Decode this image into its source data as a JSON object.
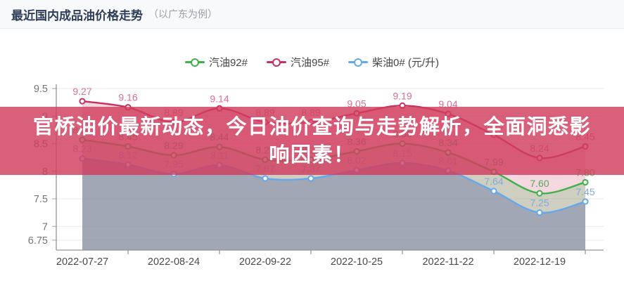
{
  "header": {
    "title": "最近国内成品油价格走势",
    "subtitle": "（以广东为例）"
  },
  "legend": {
    "position": "top",
    "items": [
      {
        "label": "汽油92#"
      },
      {
        "label": "汽油95#"
      },
      {
        "label": "柴油0# (元/升)"
      }
    ]
  },
  "banner": {
    "line1": "官桥油价最新动态，今日油价查询与走势解析，全面洞悉影",
    "line2": "响因素！"
  },
  "chart_data": {
    "type": "line",
    "title": "最近国内成品油价格走势（以广东为例）",
    "unit": "元/升",
    "grid": true,
    "legend_position": "top",
    "x_tick_labels": [
      "2022-07-27",
      "2022-08-24",
      "2022-09-22",
      "2022-10-25",
      "2022-11-22",
      "2022-12-19"
    ],
    "points_per_x_label": 2,
    "y_ticks": [
      9.5,
      9,
      8.5,
      8,
      7.5,
      7,
      6.75
    ],
    "ylim": [
      6.75,
      9.5
    ],
    "series": [
      {
        "name": "汽油92#",
        "color": "#3fb04a",
        "label_color": "#55a85e",
        "area": "rgba(130,190,130,0.33)",
        "values": [
          8.57,
          8.45,
          8.29,
          8.44,
          8.21,
          8.21,
          8.36,
          8.5,
          8.34,
          7.99,
          7.6,
          7.8
        ]
      },
      {
        "name": "汽油95#",
        "color": "#c73060",
        "label_color": "#e06b99",
        "area": "rgba(224,130,160,0.32)",
        "values": [
          9.27,
          9.16,
          8.89,
          9.14,
          8.89,
          8.89,
          9.05,
          9.19,
          9.04,
          8.66,
          8.24,
          8.45
        ]
      },
      {
        "name": "柴油0#",
        "color": "#63a8ea",
        "label_color": "#80aadf",
        "area": "rgba(124,134,170,0.55)",
        "values": [
          8.23,
          8.12,
          7.95,
          8.11,
          7.87,
          7.87,
          8.02,
          8.15,
          8.01,
          7.64,
          7.25,
          7.45
        ]
      }
    ]
  }
}
